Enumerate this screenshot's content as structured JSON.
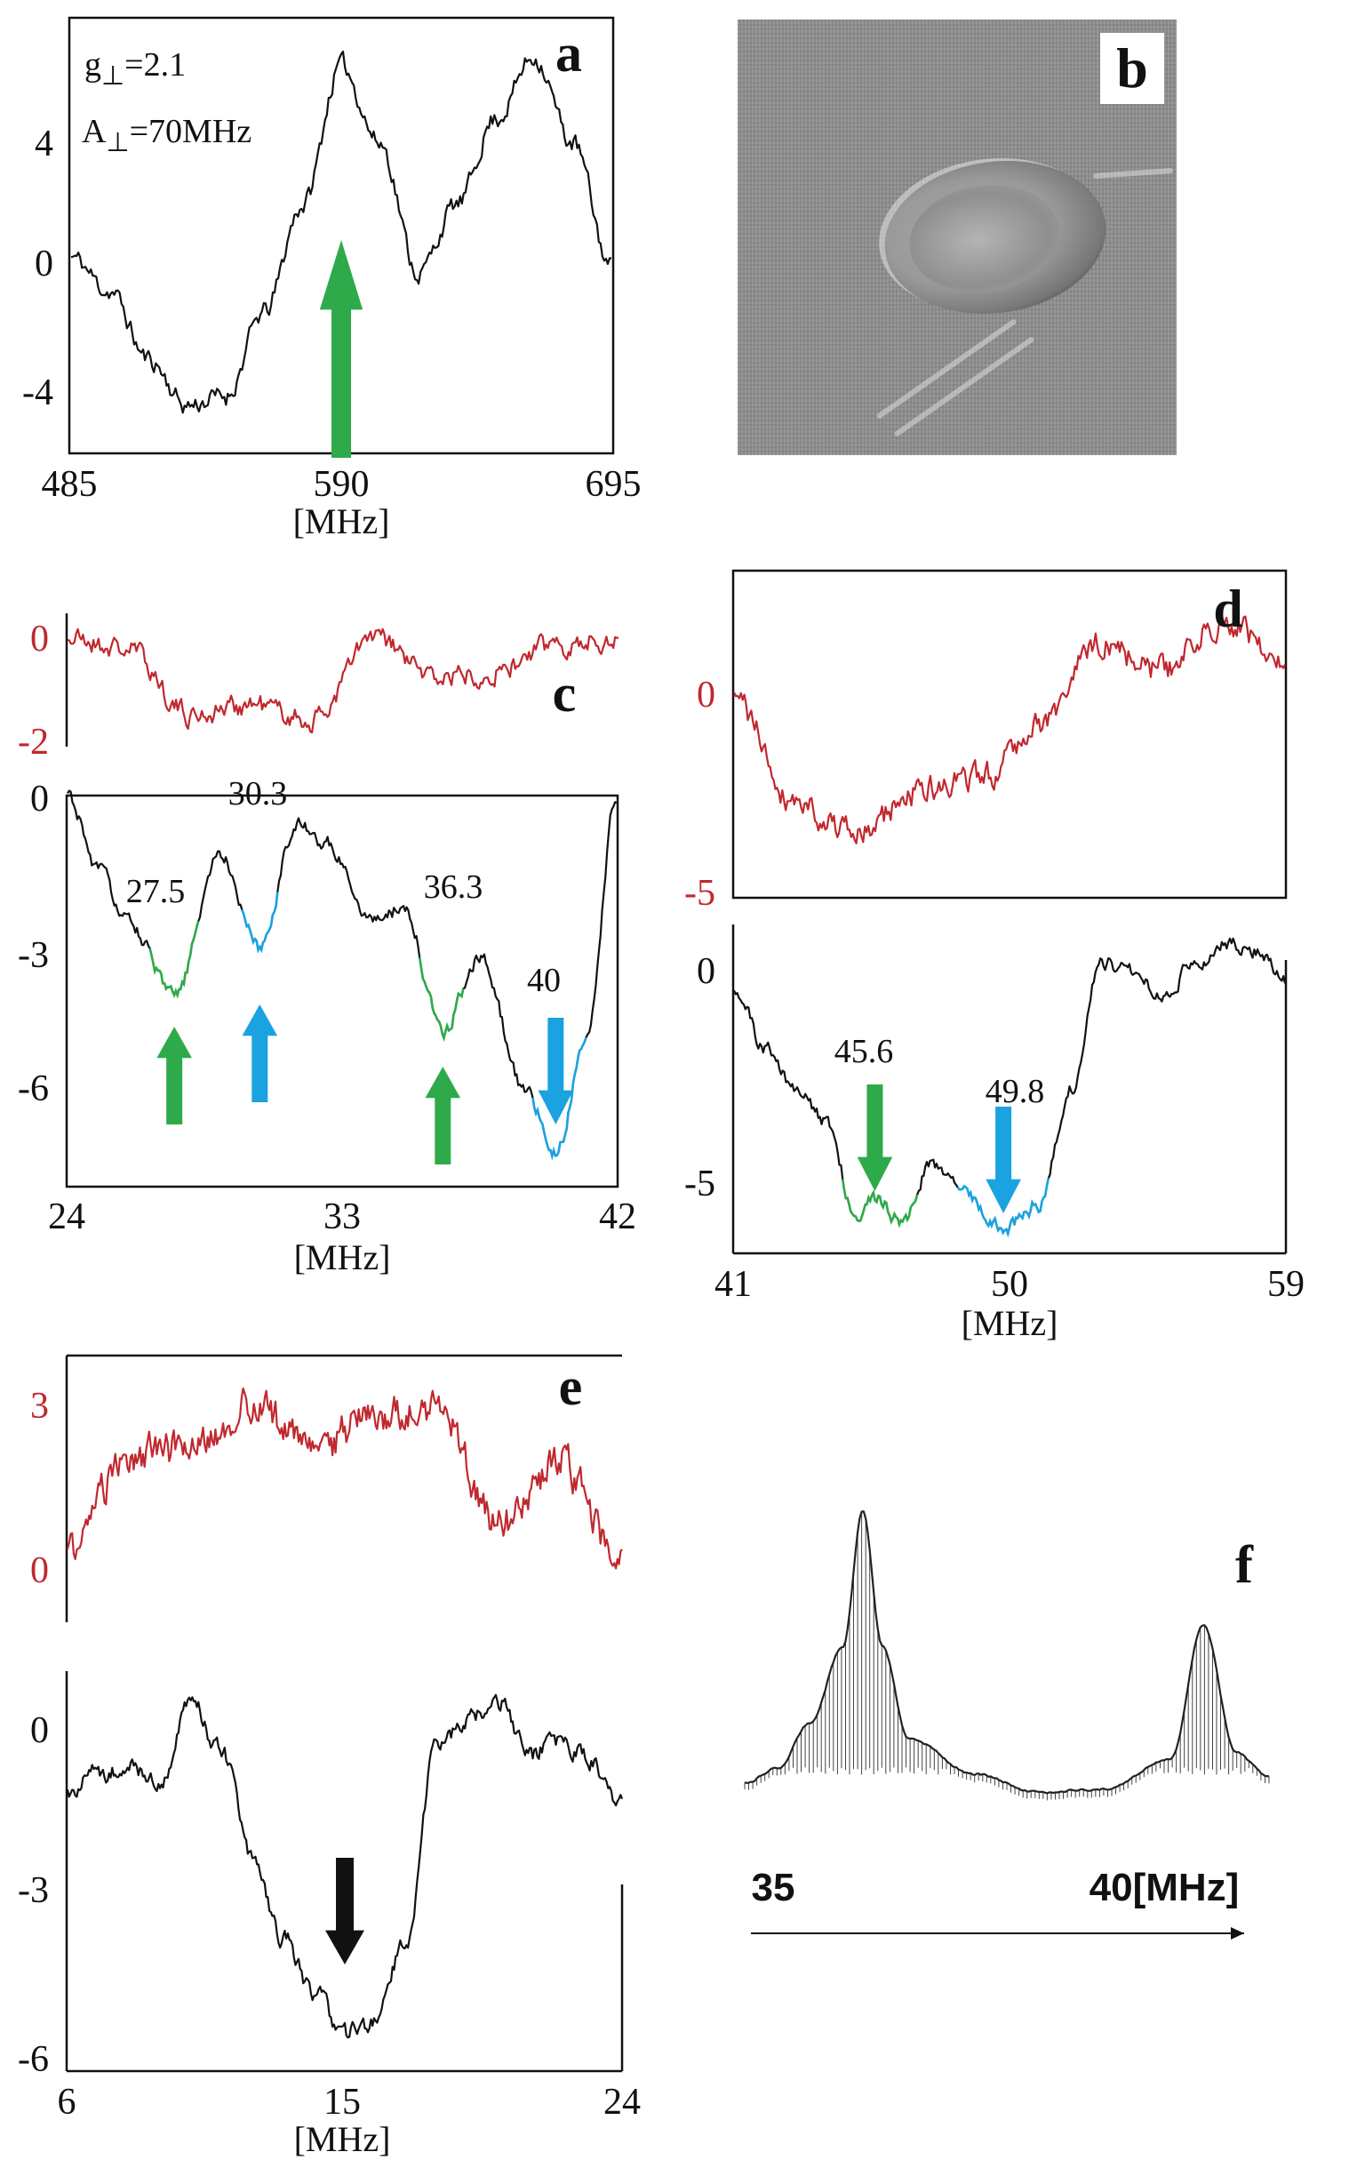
{
  "panels": {
    "a": {
      "letter": "a",
      "g_label": "g",
      "g_sub": "⊥",
      "g_value": "=2.1",
      "A_label": "A",
      "A_sub": "⊥",
      "A_value": "=70MHz",
      "yticks": [
        "4",
        "0",
        "-4"
      ],
      "xticks": [
        "485",
        "590",
        "695"
      ],
      "xlabel": "[MHz]"
    },
    "b": {
      "letter": "b"
    },
    "c": {
      "letter": "c",
      "red_yticks": [
        "0",
        "-2"
      ],
      "yticks": [
        "0",
        "-3",
        "-6"
      ],
      "xticks": [
        "24",
        "33",
        "42"
      ],
      "xlabel": "[MHz]",
      "peaks": [
        "27.5",
        "30.3",
        "36.3",
        "40"
      ]
    },
    "d": {
      "letter": "d",
      "red_yticks": [
        "0",
        "-5"
      ],
      "yticks": [
        "0",
        "-5"
      ],
      "xticks": [
        "41",
        "50",
        "59"
      ],
      "xlabel": "[MHz]",
      "peaks": [
        "45.6",
        "49.8"
      ]
    },
    "e": {
      "letter": "e",
      "red_yticks": [
        "3",
        "0"
      ],
      "yticks": [
        "0",
        "-3",
        "-6"
      ],
      "xticks": [
        "6",
        "15",
        "24"
      ],
      "xlabel": "[MHz]"
    },
    "f": {
      "letter": "f",
      "xticks": [
        "35",
        "40[MHz]"
      ]
    }
  },
  "colors": {
    "green": "#2eaa4a",
    "blue": "#1aa3e0",
    "red": "#c0282e",
    "black": "#111111"
  },
  "chart_data": [
    {
      "type": "line",
      "panel": "a",
      "xlabel": "[MHz]",
      "ylabel": "",
      "xlim": [
        485,
        695
      ],
      "ylim": [
        -6,
        8
      ],
      "x": [
        485,
        500,
        515,
        530,
        545,
        560,
        575,
        590,
        605,
        620,
        635,
        650,
        665,
        680,
        695
      ],
      "series": [
        {
          "name": "spectrum",
          "values": [
            0.3,
            -0.8,
            -3.0,
            -4.5,
            -4.2,
            -1.5,
            2.0,
            6.5,
            4.0,
            -0.2,
            2.0,
            4.8,
            6.8,
            4.0,
            0.0
          ]
        }
      ],
      "annotations": [
        "g⊥=2.1",
        "A⊥=70MHz"
      ],
      "arrow": {
        "x": 590,
        "color": "green",
        "direction": "up"
      }
    },
    {
      "type": "line",
      "panel": "c-top",
      "xlim": [
        24,
        42
      ],
      "ylim": [
        -2,
        0.2
      ],
      "x": [
        24,
        26,
        28,
        30,
        32,
        34,
        36,
        38,
        40,
        42
      ],
      "series": [
        {
          "name": "red trace",
          "values": [
            -0.1,
            -0.3,
            -1.5,
            -1.3,
            -1.6,
            -0.1,
            -0.8,
            -0.7,
            -0.2,
            -0.1
          ]
        }
      ]
    },
    {
      "type": "line",
      "panel": "c-bottom",
      "xlabel": "[MHz]",
      "xlim": [
        24,
        42
      ],
      "ylim": [
        -8,
        0
      ],
      "x": [
        24,
        25,
        26,
        27.5,
        29,
        30.3,
        31.5,
        32.5,
        34,
        35,
        36.3,
        37.5,
        39,
        40,
        41,
        42
      ],
      "series": [
        {
          "name": "black trace",
          "values": [
            0,
            -1.5,
            -2.6,
            -4.1,
            -1.2,
            -3.1,
            -0.6,
            -1.0,
            -2.5,
            -2.3,
            -4.8,
            -3.3,
            -6.0,
            -7.3,
            -5.0,
            0
          ]
        }
      ],
      "peak_labels": [
        27.5,
        30.3,
        36.3,
        40
      ]
    },
    {
      "type": "line",
      "panel": "d-top",
      "xlim": [
        41,
        59
      ],
      "ylim": [
        -5,
        2.5
      ],
      "x": [
        41,
        43,
        45,
        47,
        49,
        51,
        53,
        55,
        57,
        59
      ],
      "series": [
        {
          "name": "red trace",
          "values": [
            -0.5,
            -2.8,
            -3.6,
            -2.6,
            -2.3,
            -1.0,
            0.8,
            0.2,
            1.4,
            0.3
          ]
        }
      ]
    },
    {
      "type": "line",
      "panel": "d-bottom",
      "xlabel": "[MHz]",
      "xlim": [
        41,
        59
      ],
      "ylim": [
        -6.5,
        1.5
      ],
      "x": [
        41,
        42,
        43,
        44,
        45,
        45.6,
        46.5,
        47.5,
        48.5,
        49.8,
        51,
        52,
        53,
        54,
        55,
        56,
        57,
        58,
        59
      ],
      "series": [
        {
          "name": "black trace",
          "values": [
            0,
            -1.5,
            -2.5,
            -3.3,
            -5.5,
            -5.2,
            -5.7,
            -4.3,
            -5.0,
            -5.9,
            -5.3,
            -2.5,
            0.6,
            0.4,
            -0.2,
            0.5,
            1.0,
            0.9,
            0.1
          ]
        }
      ],
      "peak_labels": [
        45.6,
        49.8
      ]
    },
    {
      "type": "line",
      "panel": "e-top",
      "xlim": [
        6,
        24
      ],
      "ylim": [
        -1,
        3.8
      ],
      "x": [
        6,
        8,
        10,
        12,
        14,
        16,
        18,
        20,
        22,
        24
      ],
      "series": [
        {
          "name": "red trace",
          "values": [
            0.3,
            2.1,
            2.3,
            3.1,
            2.2,
            2.9,
            3.0,
            0.8,
            2.0,
            0.1
          ]
        }
      ]
    },
    {
      "type": "line",
      "panel": "e-bottom",
      "xlabel": "[MHz]",
      "xlim": [
        6,
        24
      ],
      "ylim": [
        -6,
        1.5
      ],
      "x": [
        6,
        7,
        8,
        9,
        10,
        11,
        12,
        13,
        14,
        15,
        16,
        17,
        18,
        19,
        20,
        21,
        22,
        23,
        24
      ],
      "series": [
        {
          "name": "black trace",
          "values": [
            -0.8,
            -0.4,
            -0.3,
            -0.6,
            0.9,
            0.0,
            -2.0,
            -3.5,
            -4.5,
            -5.3,
            -5.1,
            -3.5,
            0.2,
            0.6,
            0.9,
            -0.1,
            0.2,
            -0.2,
            -1.0
          ]
        }
      ],
      "arrow": {
        "x": 15,
        "color": "black",
        "direction": "down"
      }
    },
    {
      "type": "line",
      "panel": "f",
      "xlim": [
        33.5,
        41.5
      ],
      "ylim": [
        0,
        1
      ],
      "x": [
        33.5,
        34,
        34.5,
        35,
        35.3,
        35.6,
        36,
        37,
        38,
        39,
        40,
        40.5,
        41,
        41.5
      ],
      "series": [
        {
          "name": "spectrum",
          "values": [
            0.1,
            0.15,
            0.3,
            0.55,
            1.0,
            0.55,
            0.25,
            0.13,
            0.07,
            0.08,
            0.18,
            0.62,
            0.2,
            0.12
          ]
        }
      ],
      "xticks": [
        "35",
        "40[MHz]"
      ]
    }
  ]
}
